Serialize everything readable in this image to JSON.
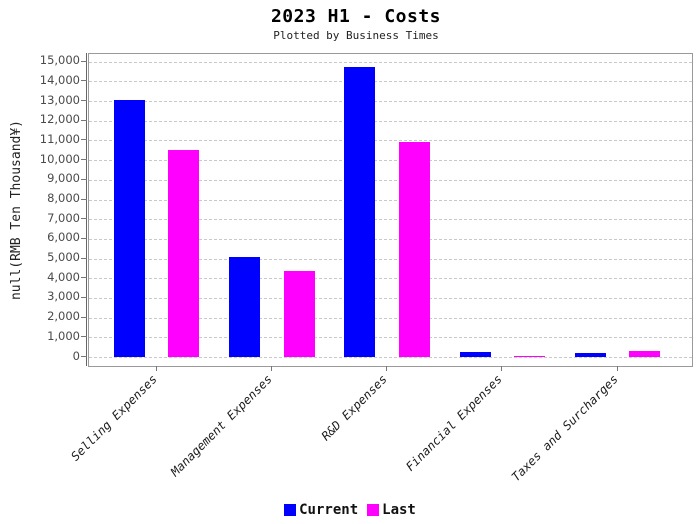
{
  "title": "2023 H1 - Costs",
  "subtitle": "Plotted by Business Times",
  "legend": {
    "items": [
      {
        "label": "Current",
        "color": "#0000ff"
      },
      {
        "label": "Last",
        "color": "#ff00ff"
      }
    ]
  },
  "y_axis": {
    "title": "null(RMB Ten Thousand¥)",
    "min": 0,
    "max": 15000,
    "step": 1000
  },
  "chart_data": {
    "type": "bar",
    "title": "2023 H1 - Costs",
    "subtitle": "Plotted by Business Times",
    "categories": [
      "Selling Expenses",
      "Management Expenses",
      "R&D Expenses",
      "Financial Expenses",
      "Taxes and Surcharges"
    ],
    "series": [
      {
        "name": "Current",
        "color": "#0000ff",
        "values": [
          13050,
          5100,
          14750,
          260,
          220
        ]
      },
      {
        "name": "Last",
        "color": "#ff00ff",
        "values": [
          10500,
          4350,
          10900,
          70,
          280
        ]
      }
    ],
    "xlabel": "",
    "ylabel": "null(RMB Ten Thousand¥)",
    "ylim": [
      0,
      15000
    ],
    "ytick_interval": 1000,
    "grid": "horizontal-dashed",
    "legend_position": "bottom-center"
  }
}
